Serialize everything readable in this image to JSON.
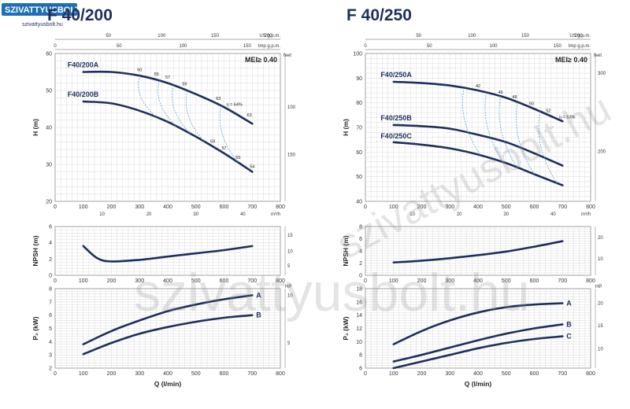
{
  "watermark": {
    "brand_top": "SZIVATTYUSBOLT.HU",
    "brand_sub": "szivattyusbolt.hu",
    "diagonal": "szivattyusbolt.hu",
    "center": "szivattyusbolt.hu"
  },
  "colors": {
    "curve": "#1f2f5c",
    "grid": "#d2d2d2",
    "eff_dash": "#5aa6d6",
    "brand_bg": "#1f6fb5"
  },
  "chart_data": [
    {
      "id": "left",
      "type": "line",
      "title": "F 40/200",
      "top_axis": {
        "us_label": "US g.p.m.",
        "us_ticks": [
          "50",
          "100",
          "150",
          "200"
        ],
        "imp_label": "Imp g.p.m.",
        "imp_ticks": [
          "0",
          "50",
          "100",
          "150"
        ]
      },
      "mei": "MEI≥ 0.40",
      "x": {
        "label": "Q (l/min)",
        "ticks": [
          "0",
          "100",
          "200",
          "300",
          "400",
          "500",
          "600",
          "700",
          "800"
        ],
        "lim": [
          0,
          800
        ]
      },
      "x2": {
        "label": "m³/h",
        "ticks": [
          "10",
          "20",
          "30",
          "40"
        ]
      },
      "head": {
        "ylabel": "H (m)",
        "ylim": [
          20,
          60
        ],
        "yticks": [
          "20",
          "30",
          "40",
          "50",
          "60"
        ],
        "right_label": "feet",
        "right_ticks": [
          "100",
          "150"
        ],
        "series": [
          {
            "name": "F40/200A",
            "x": [
              100,
              200,
              300,
              400,
              500,
              600,
              700
            ],
            "y": [
              55,
              55,
              54,
              52,
              49,
              45.5,
              41
            ]
          },
          {
            "name": "F40/200B",
            "x": [
              100,
              200,
              300,
              400,
              500,
              600,
              700
            ],
            "y": [
              47,
              46.5,
              44.5,
              41.5,
              37.5,
              33,
              28
            ]
          }
        ],
        "efficiency_labels": [
          "50",
          "55",
          "57",
          "59",
          "63",
          "η = 64%",
          "63",
          "59",
          "57",
          "55",
          "54"
        ]
      },
      "npsh": {
        "ylabel": "NPSH (m)",
        "ylim": [
          0,
          6
        ],
        "yticks": [
          "0",
          "2",
          "4",
          "6"
        ],
        "right_ticks": [
          "5",
          "10",
          "15"
        ],
        "series": [
          {
            "x": [
              100,
              150,
              200,
              300,
              400,
              500,
              600,
              700
            ],
            "y": [
              3.6,
              2.1,
              1.7,
              1.9,
              2.3,
              2.7,
              3.1,
              3.6
            ]
          }
        ]
      },
      "power": {
        "ylabel": "P₂ (kW)",
        "ylim": [
          2,
          8
        ],
        "yticks": [
          "2",
          "3",
          "4",
          "5",
          "6",
          "7",
          "8"
        ],
        "right_label": "HP",
        "right_ticks": [
          "5",
          "10"
        ],
        "series": [
          {
            "name": "A",
            "x": [
              100,
              200,
              300,
              400,
              500,
              600,
              700
            ],
            "y": [
              3.8,
              4.8,
              5.6,
              6.3,
              6.8,
              7.2,
              7.5
            ]
          },
          {
            "name": "B",
            "x": [
              100,
              200,
              300,
              400,
              500,
              600,
              700
            ],
            "y": [
              3.05,
              3.9,
              4.6,
              5.1,
              5.5,
              5.8,
              6.0
            ]
          }
        ]
      }
    },
    {
      "id": "right",
      "type": "line",
      "title": "F 40/250",
      "top_axis": {
        "us_label": "US g.p.m.",
        "us_ticks": [
          "50",
          "100",
          "150",
          "200"
        ],
        "imp_label": "Imp g.p.m.",
        "imp_ticks": [
          "0",
          "50",
          "100",
          "150"
        ]
      },
      "mei": "MEI≥ 0.40",
      "x": {
        "label": "Q (l/min)",
        "ticks": [
          "0",
          "100",
          "200",
          "300",
          "400",
          "500",
          "600",
          "700",
          "800"
        ],
        "lim": [
          0,
          800
        ]
      },
      "x2": {
        "label": "m³/h",
        "ticks": [
          "10",
          "20",
          "30",
          "40"
        ]
      },
      "head": {
        "ylabel": "H (m)",
        "ylim": [
          40,
          100
        ],
        "yticks": [
          "40",
          "50",
          "60",
          "70",
          "80",
          "90",
          "100"
        ],
        "right_label": "feet",
        "right_ticks": [
          "200",
          "300"
        ],
        "series": [
          {
            "name": "F40/250A",
            "x": [
              100,
              200,
              300,
              400,
              500,
              600,
              700
            ],
            "y": [
              88.5,
              88,
              87,
              85,
              82,
              77.5,
              72.5
            ]
          },
          {
            "name": "F40/250B",
            "x": [
              100,
              200,
              300,
              400,
              500,
              600,
              700
            ],
            "y": [
              71,
              70.5,
              69.5,
              67,
              64,
              59.5,
              54.5
            ]
          },
          {
            "name": "F40/250C",
            "x": [
              100,
              200,
              300,
              400,
              500,
              600,
              700
            ],
            "y": [
              64,
              63,
              61.5,
              59,
              55.5,
              51,
              46.5
            ]
          }
        ],
        "efficiency_labels": [
          "42",
          "46",
          "48",
          "50",
          "52",
          "η = 53%"
        ]
      },
      "npsh": {
        "ylabel": "NPSH (m)",
        "ylim": [
          0,
          8
        ],
        "yticks": [
          "0",
          "2",
          "4",
          "6",
          "8"
        ],
        "right_ticks": [
          "10",
          "20"
        ],
        "series": [
          {
            "x": [
              100,
              200,
              300,
              400,
              500,
              600,
              700
            ],
            "y": [
              2.1,
              2.4,
              2.8,
              3.3,
              3.9,
              4.7,
              5.6
            ]
          }
        ]
      },
      "power": {
        "ylabel": "P₂ (kW)",
        "ylim": [
          6,
          18
        ],
        "yticks": [
          "6",
          "8",
          "10",
          "12",
          "14",
          "16",
          "18"
        ],
        "right_label": "HP",
        "right_ticks": [
          "10",
          "15",
          "20"
        ],
        "series": [
          {
            "name": "A",
            "x": [
              100,
              200,
              300,
              400,
              500,
              600,
              700
            ],
            "y": [
              9.6,
              11.6,
              13.2,
              14.4,
              15.2,
              15.6,
              15.8
            ]
          },
          {
            "name": "B",
            "x": [
              100,
              200,
              300,
              400,
              500,
              600,
              700
            ],
            "y": [
              7,
              8,
              9.1,
              10.2,
              11.2,
              12,
              12.6
            ]
          },
          {
            "name": "C",
            "x": [
              100,
              200,
              300,
              400,
              500,
              600,
              700
            ],
            "y": [
              6,
              7,
              8,
              9,
              9.8,
              10.4,
              10.8
            ]
          }
        ]
      }
    }
  ]
}
